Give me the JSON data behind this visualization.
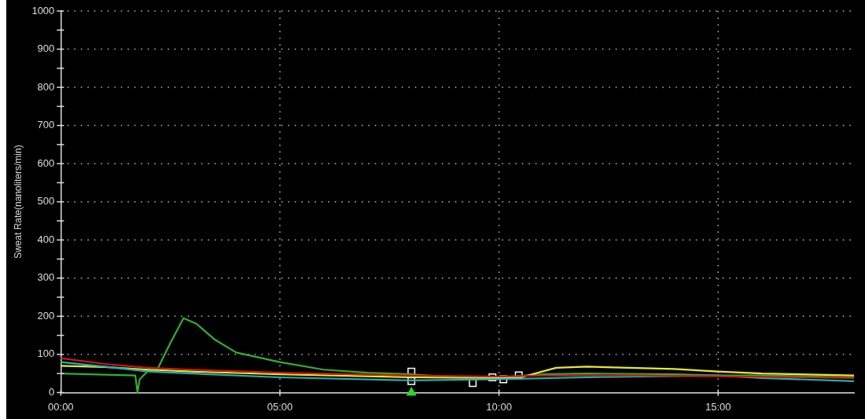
{
  "chart_data": {
    "type": "line",
    "ylabel": "Sweat Rate(nanoliters/min)",
    "xlim": [
      0,
      18.1
    ],
    "xticks": [
      {
        "value": 0,
        "label": "00:00"
      },
      {
        "value": 5,
        "label": "05:00"
      },
      {
        "value": 10,
        "label": "10:00"
      },
      {
        "value": 15,
        "label": "15:00"
      }
    ],
    "ylim": [
      0,
      1000
    ],
    "yticks": [
      0,
      {
        "value": 50,
        "label": null
      },
      100,
      {
        "value": 150,
        "label": null
      },
      200,
      {
        "value": 250,
        "label": null
      },
      300,
      {
        "value": 350,
        "label": null
      },
      400,
      {
        "value": 450,
        "label": null
      },
      500,
      {
        "value": 550,
        "label": null
      },
      600,
      {
        "value": 650,
        "label": null
      },
      700,
      {
        "value": 750,
        "label": null
      },
      800,
      {
        "value": 850,
        "label": null
      },
      900,
      {
        "value": 950,
        "label": null
      },
      1000
    ],
    "grid": true,
    "legend": false,
    "marker": "none",
    "line_style": "solid",
    "series": [
      {
        "color": "#d01818",
        "x": [
          0,
          1,
          2,
          3,
          5,
          8,
          10,
          11,
          13,
          15,
          17,
          18.1
        ],
        "values": [
          90,
          75,
          65,
          60,
          52,
          45,
          42,
          45,
          45,
          43,
          40,
          38
        ]
      },
      {
        "color": "#20b0b8",
        "x": [
          0,
          1,
          2,
          3,
          5,
          8,
          10,
          12,
          15,
          16,
          18.1
        ],
        "values": [
          80,
          68,
          55,
          50,
          40,
          32,
          35,
          40,
          45,
          38,
          30
        ]
      },
      {
        "color": "#e8e830",
        "x": [
          0,
          1,
          2,
          3,
          5,
          8,
          10,
          10.5,
          11.3,
          12,
          14,
          15,
          16,
          18.1
        ],
        "values": [
          70,
          67,
          60,
          55,
          48,
          40,
          38,
          40,
          65,
          68,
          62,
          55,
          50,
          45
        ]
      },
      {
        "color": "#30b030",
        "x": [
          0,
          1,
          1.7,
          1.75,
          1.8,
          2,
          2.2,
          2.5,
          2.8,
          3.1,
          3.5,
          4,
          5,
          6,
          7,
          8,
          9,
          10,
          11,
          12,
          14,
          15,
          16,
          18.1
        ],
        "values": [
          50,
          47,
          45,
          0,
          35,
          58,
          60,
          130,
          195,
          180,
          140,
          105,
          80,
          60,
          52,
          48,
          40,
          40,
          48,
          50,
          48,
          45,
          45,
          40
        ]
      },
      {
        "type": "scatter",
        "marker": "square",
        "color": "#ffffff",
        "x": [
          8,
          8,
          9.4,
          9.85,
          10.1,
          10.45
        ],
        "values": [
          55,
          30,
          25,
          40,
          35,
          45
        ]
      },
      {
        "type": "scatter",
        "marker": "triangle",
        "color": "#22dd22",
        "x": [
          8
        ],
        "values": [
          0
        ]
      }
    ]
  }
}
